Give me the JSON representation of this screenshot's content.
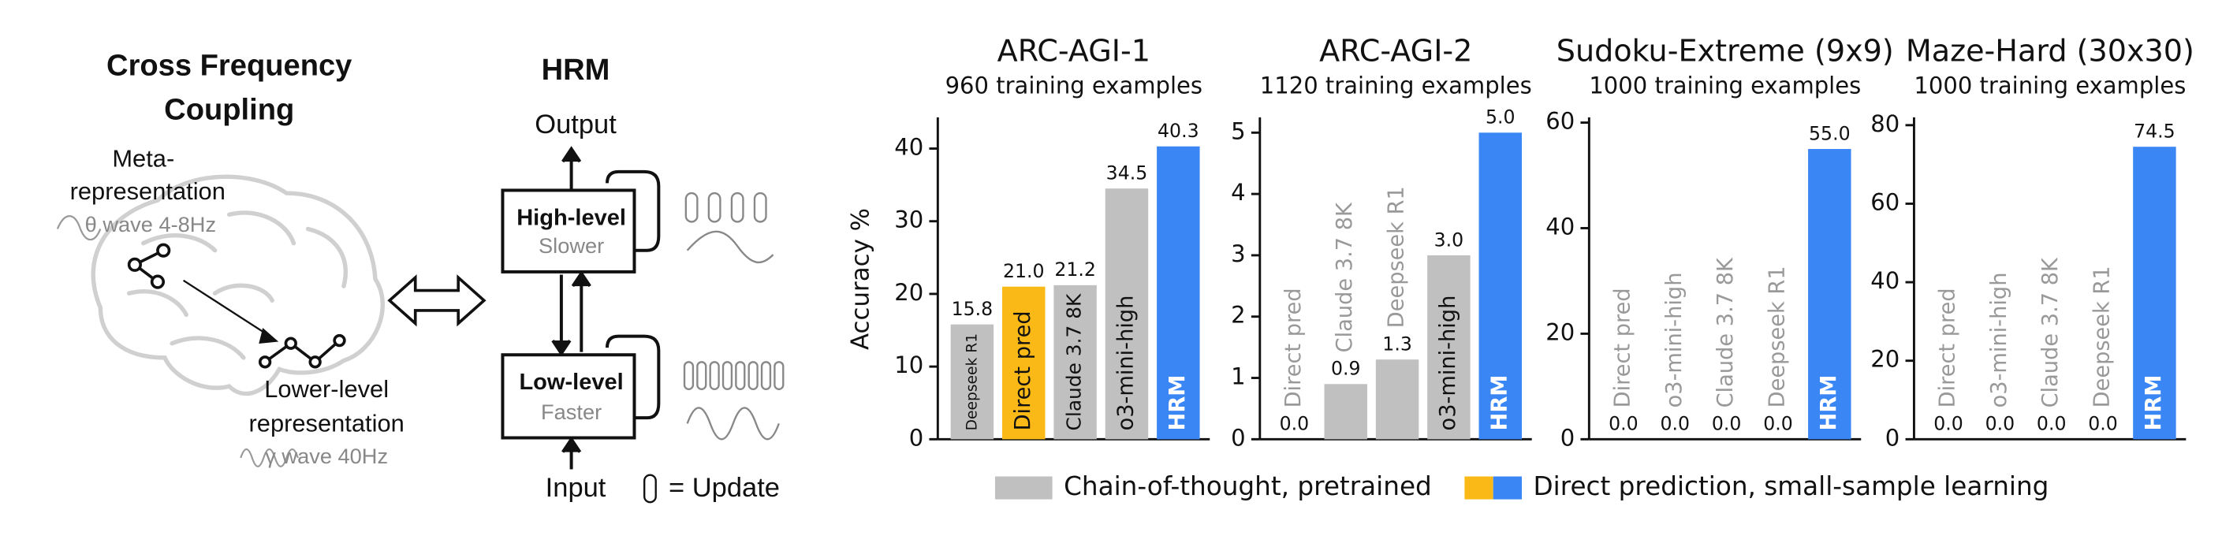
{
  "diagram": {
    "coupling": {
      "title": [
        "Cross Frequency",
        "Coupling"
      ],
      "meta_label": [
        "Meta-",
        "representation"
      ],
      "theta_label": "θ wave 4-8Hz",
      "lower_label": [
        "Lower-level",
        "representation"
      ],
      "gamma_label": "γ wave 40Hz"
    },
    "hrm": {
      "title": "HRM",
      "output": "Output",
      "high_level": {
        "name": "High-level",
        "speed": "Slower"
      },
      "low_level": {
        "name": "Low-level",
        "speed": "Faster"
      },
      "input": "Input",
      "update_legend": "= Update"
    }
  },
  "chart_data": [
    {
      "type": "bar",
      "title": "ARC-AGI-1",
      "subtitle": "960 training examples",
      "ylabel": "Accuracy %",
      "categories": [
        "Deepseek R1",
        "Direct pred",
        "Claude 3.7 8K",
        "o3-mini-high",
        "HRM"
      ],
      "values": [
        15.8,
        21.0,
        21.2,
        34.5,
        40.3
      ],
      "value_labels": [
        "15.8",
        "21.0",
        "21.2",
        "34.5",
        "40.3"
      ],
      "colors": [
        "#c0c0c0",
        "#fbb917",
        "#c0c0c0",
        "#c0c0c0",
        "#3a86f5"
      ],
      "ylim": [
        0,
        44.3
      ],
      "yticks": [
        0,
        10,
        20,
        30,
        40
      ]
    },
    {
      "type": "bar",
      "title": "ARC-AGI-2",
      "subtitle": "1120 training examples",
      "categories": [
        "Direct pred",
        "Claude 3.7 8K",
        "Deepseek R1",
        "o3-mini-high",
        "HRM"
      ],
      "values": [
        0.0,
        0.9,
        1.3,
        3.0,
        5.0
      ],
      "value_labels": [
        "0.0",
        "0.9",
        "1.3",
        "3.0",
        "5.0"
      ],
      "colors": [
        "#c0c0c0",
        "#c0c0c0",
        "#c0c0c0",
        "#c0c0c0",
        "#3a86f5"
      ],
      "ylim": [
        0,
        5.25
      ],
      "yticks": [
        0,
        1,
        2,
        3,
        4,
        5
      ]
    },
    {
      "type": "bar",
      "title": "Sudoku-Extreme (9x9)",
      "subtitle": "1000 training examples",
      "categories": [
        "Direct pred",
        "o3-mini-high",
        "Claude 3.7 8K",
        "Deepseek R1",
        "HRM"
      ],
      "values": [
        0.0,
        0.0,
        0.0,
        0.0,
        55.0
      ],
      "value_labels": [
        "0.0",
        "0.0",
        "0.0",
        "0.0",
        "55.0"
      ],
      "colors": [
        "#c0c0c0",
        "#c0c0c0",
        "#c0c0c0",
        "#c0c0c0",
        "#3a86f5"
      ],
      "ylim": [
        0,
        61
      ],
      "yticks": [
        0,
        20,
        40,
        60
      ]
    },
    {
      "type": "bar",
      "title": "Maze-Hard (30x30)",
      "subtitle": "1000 training examples",
      "categories": [
        "Direct pred",
        "o3-mini-high",
        "Claude 3.7 8K",
        "Deepseek R1",
        "HRM"
      ],
      "values": [
        0.0,
        0.0,
        0.0,
        0.0,
        74.5
      ],
      "value_labels": [
        "0.0",
        "0.0",
        "0.0",
        "0.0",
        "74.5"
      ],
      "colors": [
        "#c0c0c0",
        "#c0c0c0",
        "#c0c0c0",
        "#c0c0c0",
        "#3a86f5"
      ],
      "ylim": [
        0,
        82
      ],
      "yticks": [
        0,
        20,
        40,
        60,
        80
      ]
    }
  ],
  "legend": [
    {
      "name": "Chain-of-thought, pretrained",
      "colors": [
        "#c0c0c0"
      ]
    },
    {
      "name": "Direct prediction, small-sample learning",
      "colors": [
        "#fbb917",
        "#3a86f5"
      ]
    }
  ]
}
